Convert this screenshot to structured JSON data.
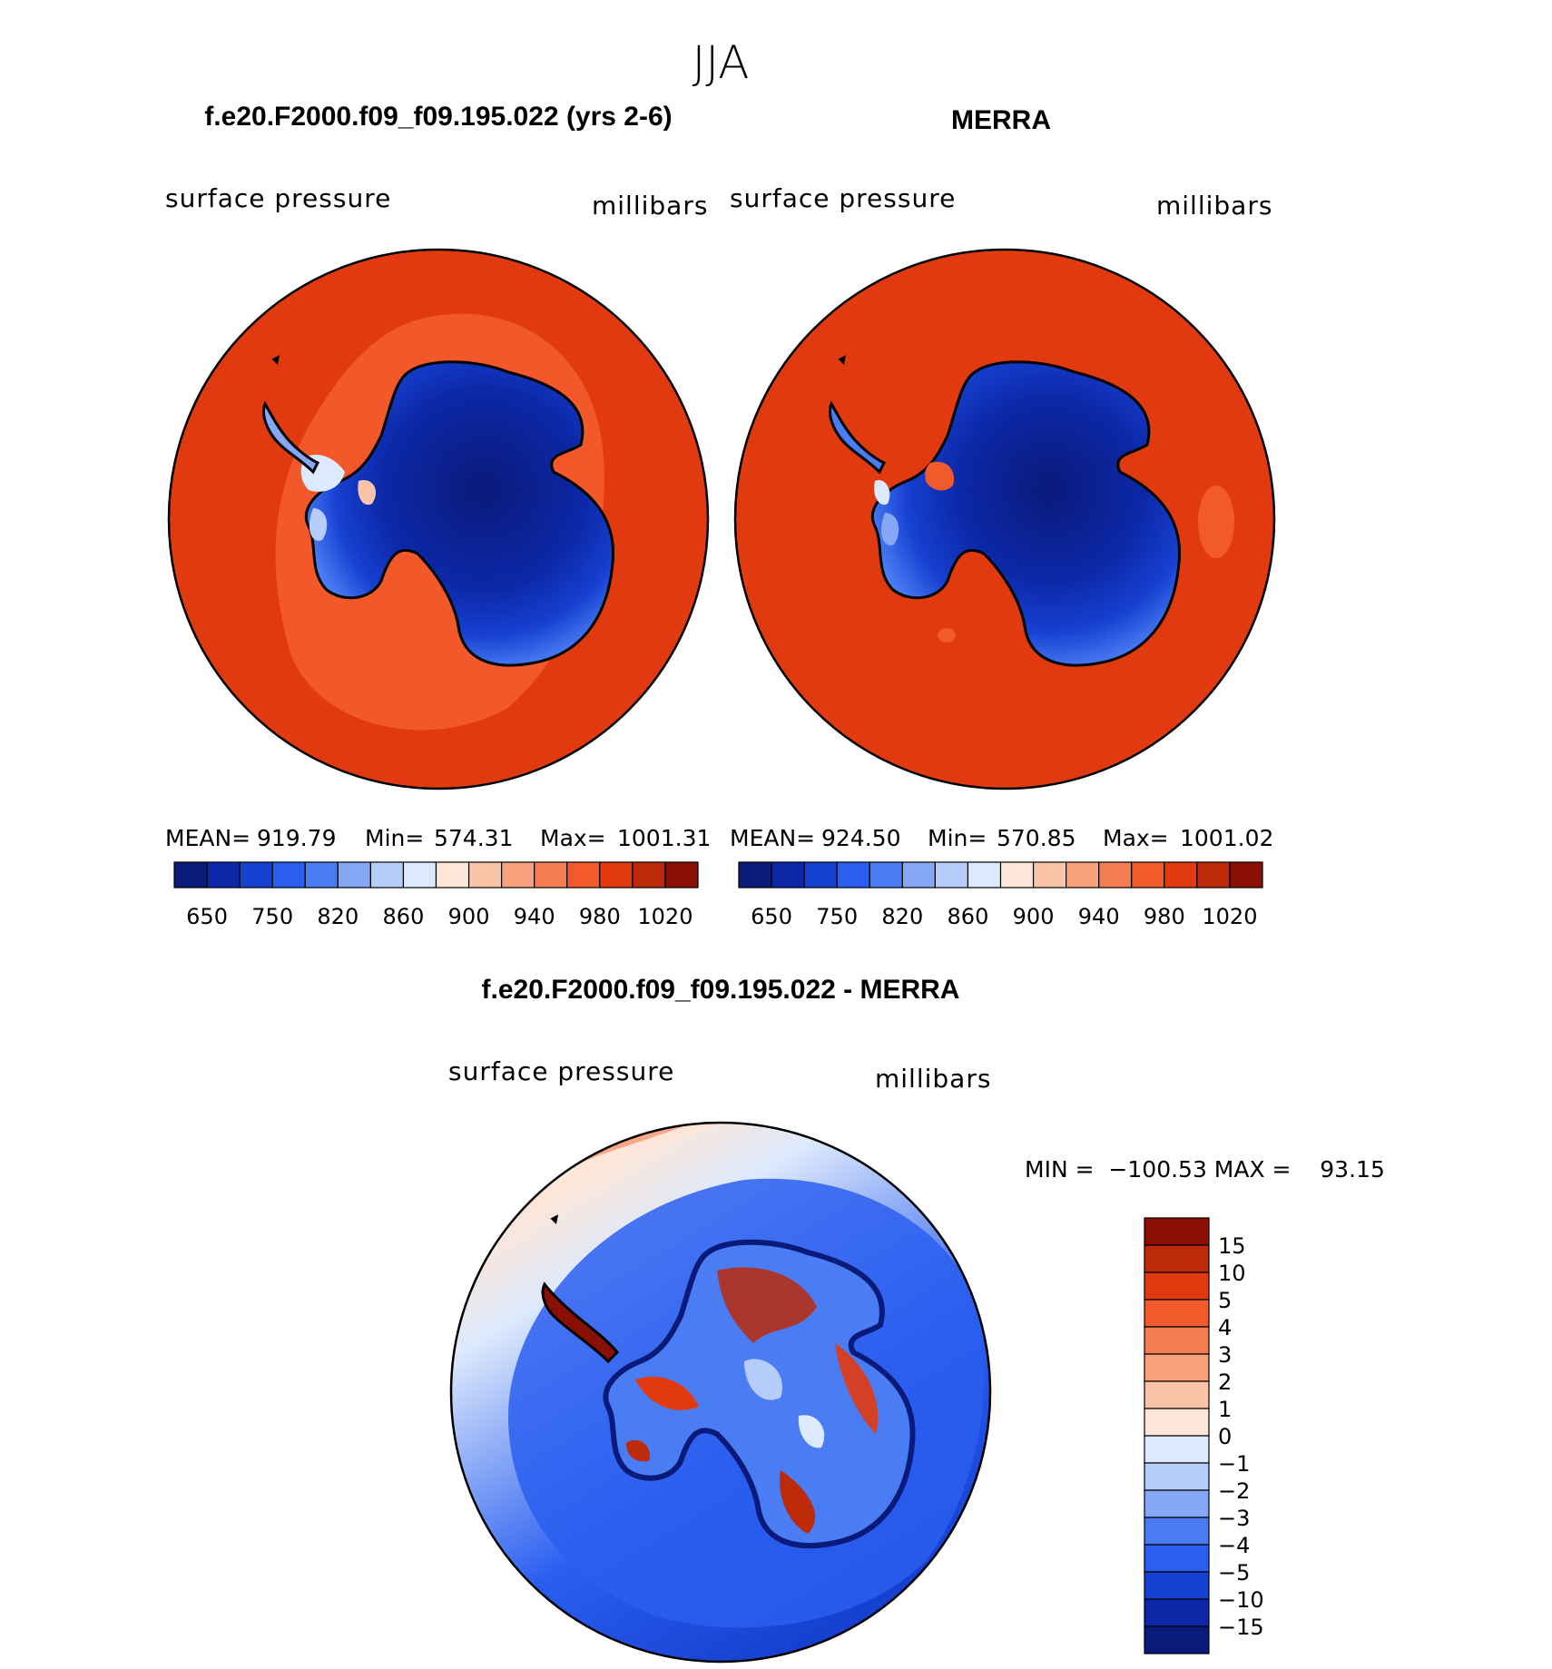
{
  "season": "JJA",
  "panels": [
    {
      "title": "f.e20.F2000.f09_f09.195.022 (yrs 2-6)",
      "variable": "surface pressure",
      "units": "millibars",
      "stats": {
        "mean_label": "MEAN=",
        "mean": "919.79",
        "min_label": "Min=",
        "min": "574.31",
        "max_label": "Max=",
        "max": "1001.31"
      }
    },
    {
      "title": "MERRA",
      "variable": "surface pressure",
      "units": "millibars",
      "stats": {
        "mean_label": "MEAN=",
        "mean": "924.50",
        "min_label": "Min=",
        "min": "570.85",
        "max_label": "Max=",
        "max": "1001.02"
      }
    }
  ],
  "diff_panel": {
    "title": "f.e20.F2000.f09_f09.195.022 - MERRA",
    "variable": "surface pressure",
    "units": "millibars",
    "minmax_text": "MIN =  −100.53 MAX =    93.15"
  },
  "colorbar_abs": {
    "labels": [
      "650",
      "750",
      "820",
      "860",
      "900",
      "940",
      "980",
      "1020"
    ],
    "colors": [
      "#0a1a7a",
      "#0c28a8",
      "#1640d0",
      "#2a5ef0",
      "#4a7cf4",
      "#86a6f6",
      "#b6ccfa",
      "#dde9fc",
      "#fde6d8",
      "#fbc4a8",
      "#f9a07c",
      "#f57c52",
      "#f25a2c",
      "#e23a10",
      "#bc2a0a",
      "#8a1006"
    ]
  },
  "colorbar_diff": {
    "labels": [
      "15",
      "10",
      "5",
      "4",
      "3",
      "2",
      "1",
      "0",
      "−1",
      "−2",
      "−3",
      "−4",
      "−5",
      "−10",
      "−15"
    ],
    "colors": [
      "#8a1006",
      "#bc2a0a",
      "#e23a10",
      "#f25a2c",
      "#f57c52",
      "#f9a07c",
      "#fbc4a8",
      "#fde6d8",
      "#dde9fc",
      "#b6ccfa",
      "#86a6f6",
      "#4a7cf4",
      "#2a5ef0",
      "#1640d0",
      "#0c28a8",
      "#0a1a7a"
    ]
  },
  "colors": {
    "ocean_model": "#e23a10",
    "ocean_high": "#f25a2c",
    "ice_deep": "#0a1a7a",
    "ice_mid": "#1640d0",
    "ice_edge": "#4a7cf4",
    "diff_ocean": "#1640d0",
    "diff_ocean_light": "#b6ccfa",
    "diff_ocean_pale": "#dde9fc",
    "diff_warm": "#f9a07c",
    "diff_red": "#bc2a0a",
    "coast": "#000000"
  }
}
